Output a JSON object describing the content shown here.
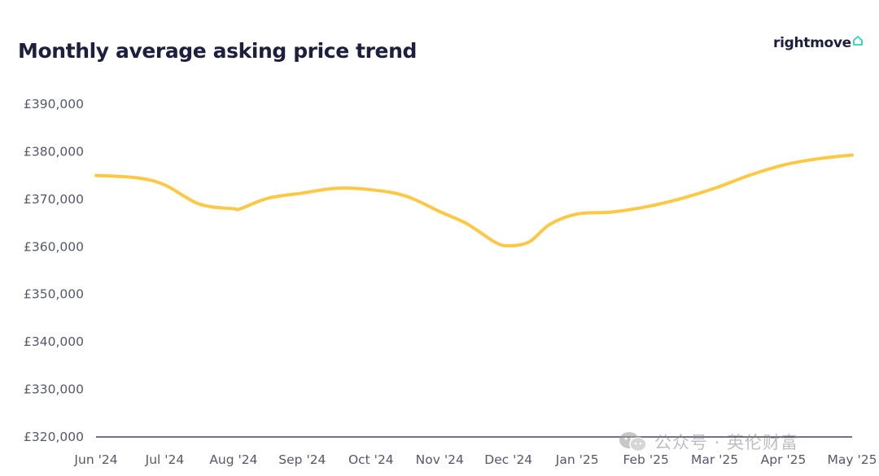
{
  "header": {
    "title": "Monthly average asking price trend",
    "logo_text": "rightmove"
  },
  "watermark": {
    "text": "公众号 · 英伦财富"
  },
  "colors": {
    "line": "#fcc846",
    "axis": "#1c1f3d",
    "logo_accent": "#2ad4b6"
  },
  "icons": {
    "logo": "house-icon",
    "watermark": "wechat-icon"
  },
  "chart_data": {
    "type": "line",
    "title": "Monthly average asking price trend",
    "xlabel": "",
    "ylabel": "",
    "categories": [
      "Jun '24",
      "Jul '24",
      "Aug '24",
      "Sep '24",
      "Oct '24",
      "Nov '24",
      "Dec '24",
      "Jan '25",
      "Feb '25",
      "Mar '25",
      "Apr '25",
      "May '25"
    ],
    "x": [
      0,
      0.6,
      1,
      1.5,
      2,
      2.1,
      2.5,
      3,
      3.5,
      4,
      4.5,
      5,
      5.4,
      5.8,
      6,
      6.3,
      6.6,
      7,
      7.5,
      8,
      8.5,
      9,
      9.5,
      10,
      10.5,
      11
    ],
    "values": [
      375000,
      374500,
      373000,
      369000,
      368000,
      368000,
      370200,
      371300,
      372300,
      372000,
      370700,
      367400,
      364800,
      361000,
      360200,
      361000,
      364700,
      366900,
      367300,
      368400,
      370100,
      372300,
      375000,
      377200,
      378500,
      379300
    ],
    "yticks": [
      "£390,000",
      "£380,000",
      "£370,000",
      "£360,000",
      "£350,000",
      "£340,000",
      "£330,000",
      "£320,000"
    ],
    "ytick_values": [
      390000,
      380000,
      370000,
      360000,
      350000,
      340000,
      330000,
      320000
    ],
    "ylim": [
      320000,
      390000
    ],
    "grid": false,
    "legend": "none"
  }
}
